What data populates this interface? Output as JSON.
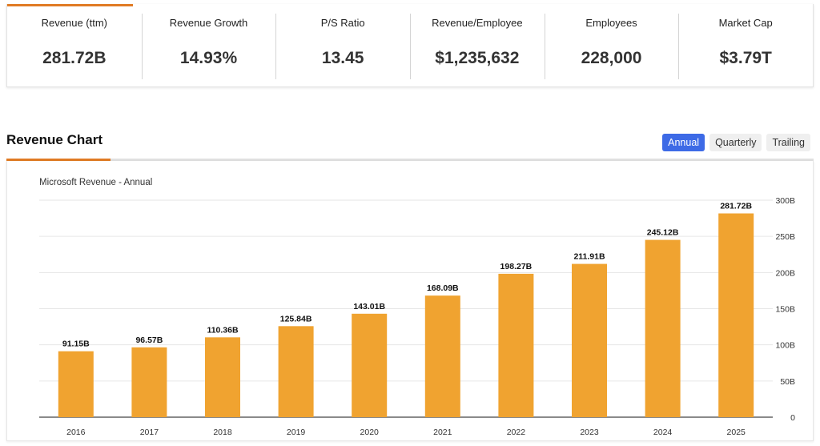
{
  "stats": [
    {
      "label": "Revenue (ttm)",
      "value": "281.72B"
    },
    {
      "label": "Revenue Growth",
      "value": "14.93%"
    },
    {
      "label": "P/S Ratio",
      "value": "13.45"
    },
    {
      "label": "Revenue/Employee",
      "value": "$1,235,632"
    },
    {
      "label": "Employees",
      "value": "228,000"
    },
    {
      "label": "Market Cap",
      "value": "$3.79T"
    }
  ],
  "section": {
    "title": "Revenue Chart"
  },
  "tabs": [
    {
      "label": "Annual",
      "active": true
    },
    {
      "label": "Quarterly",
      "active": false
    },
    {
      "label": "Trailing",
      "active": false
    }
  ],
  "colors": {
    "accent": "#e07b24",
    "bar": "#f0a330",
    "active_tab": "#3d6ae6"
  },
  "chart_data": {
    "type": "bar",
    "title": "Microsoft Revenue - Annual",
    "categories": [
      "2016",
      "2017",
      "2018",
      "2019",
      "2020",
      "2021",
      "2022",
      "2023",
      "2024",
      "2025"
    ],
    "values": [
      91.15,
      96.57,
      110.36,
      125.84,
      143.01,
      168.09,
      198.27,
      211.91,
      245.12,
      281.72
    ],
    "data_labels": [
      "91.15B",
      "96.57B",
      "110.36B",
      "125.84B",
      "143.01B",
      "168.09B",
      "198.27B",
      "211.91B",
      "245.12B",
      "281.72B"
    ],
    "yticks": [
      0,
      50,
      100,
      150,
      200,
      250,
      300
    ],
    "ytick_labels": [
      "0",
      "50B",
      "100B",
      "150B",
      "200B",
      "250B",
      "300B"
    ],
    "ylim": [
      0,
      300
    ],
    "y_axis_side": "right",
    "grid": true
  }
}
